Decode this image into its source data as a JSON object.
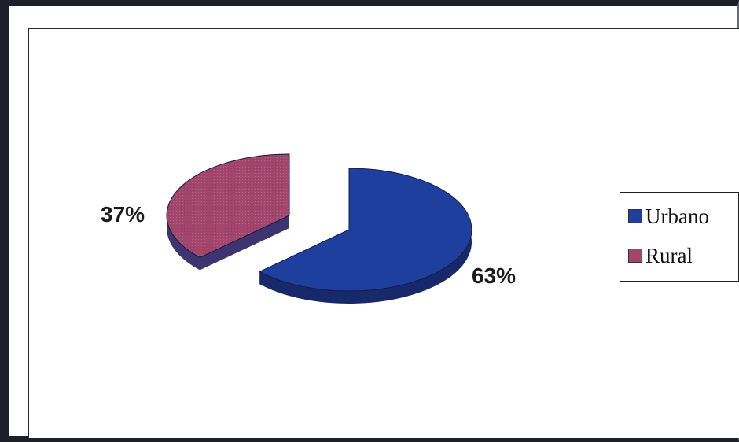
{
  "chart_data": {
    "type": "pie",
    "categories": [
      "Urbano",
      "Rural"
    ],
    "values": [
      63,
      37
    ],
    "value_labels": [
      "63%",
      "37%"
    ],
    "colors": [
      "#1f3f9e",
      "#a3466e"
    ],
    "side_colors": [
      "#18296b",
      "#3d3470"
    ],
    "exploded": true,
    "three_d": true,
    "legend": "right",
    "title": ""
  }
}
